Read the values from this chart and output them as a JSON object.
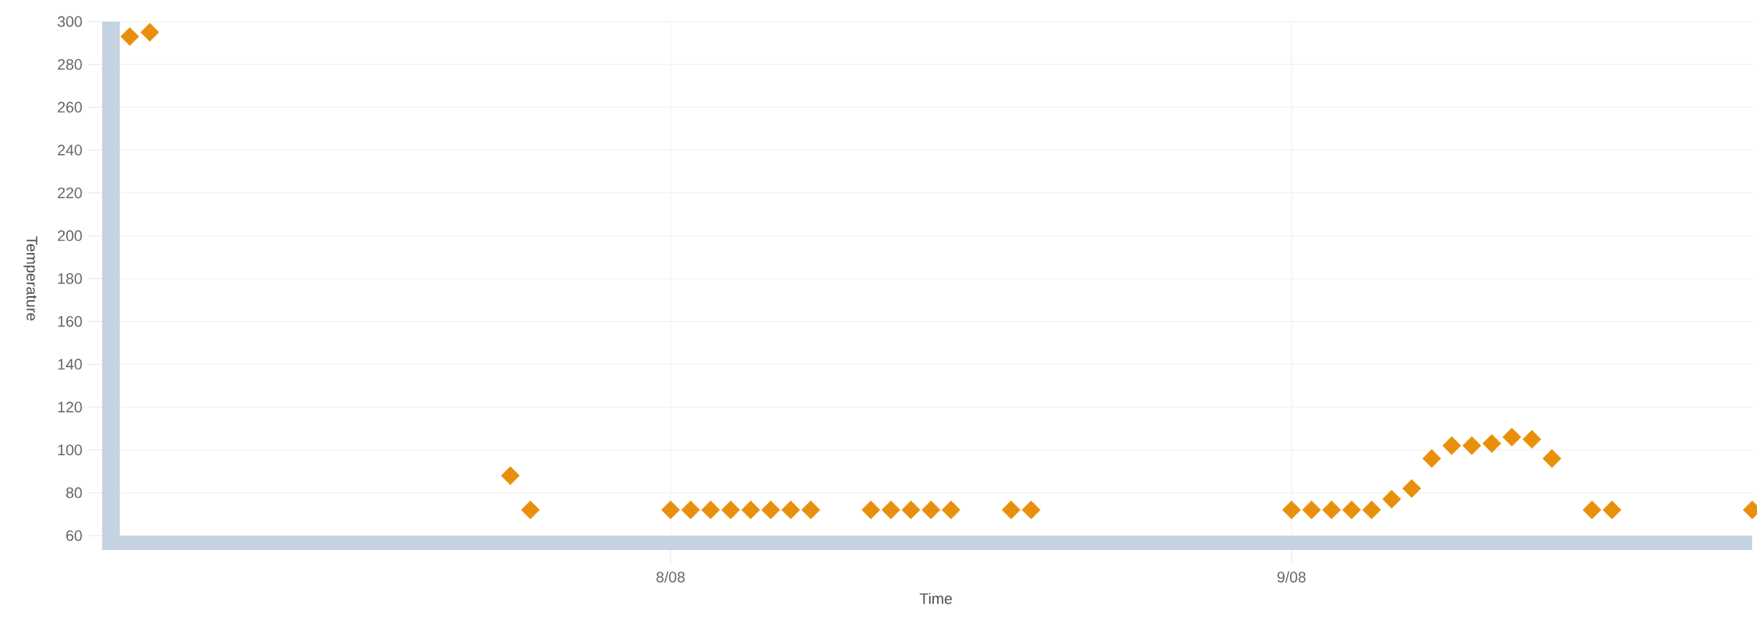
{
  "chart_data": {
    "type": "scatter",
    "xlabel": "Time",
    "ylabel": "Temperature",
    "x": [
      "2008-07-05",
      "2008-07-06",
      "2008-07-24",
      "2008-07-25",
      "2008-08-01",
      "2008-08-02",
      "2008-08-03",
      "2008-08-04",
      "2008-08-05",
      "2008-08-06",
      "2008-08-07",
      "2008-08-08",
      "2008-08-11",
      "2008-08-12",
      "2008-08-13",
      "2008-08-14",
      "2008-08-15",
      "2008-08-18",
      "2008-08-19",
      "2008-09-01",
      "2008-09-02",
      "2008-09-03",
      "2008-09-04",
      "2008-09-05",
      "2008-09-06",
      "2008-09-07",
      "2008-09-08",
      "2008-09-09",
      "2008-09-10",
      "2008-09-11",
      "2008-09-12",
      "2008-09-13",
      "2008-09-14",
      "2008-09-16",
      "2008-09-17",
      "2008-09-24"
    ],
    "values": [
      293,
      295,
      88,
      72,
      72,
      72,
      72,
      72,
      72,
      72,
      72,
      72,
      72,
      72,
      72,
      72,
      72,
      72,
      72,
      72,
      72,
      72,
      72,
      72,
      77,
      82,
      96,
      102,
      102,
      103,
      106,
      105,
      96,
      72,
      72,
      72
    ],
    "color": "#e8900c",
    "marker": "diamond",
    "grid": true,
    "xlim": [
      "2008-07-04T12:00",
      "2008-09-24T00:00"
    ],
    "xticks": [
      {
        "value": "2008-08-01",
        "label": "8/08"
      },
      {
        "value": "2008-09-01",
        "label": "9/08"
      }
    ],
    "ylim": [
      60,
      300
    ],
    "yticks": [
      60,
      80,
      100,
      120,
      140,
      160,
      180,
      200,
      220,
      240,
      260,
      280,
      300
    ]
  }
}
